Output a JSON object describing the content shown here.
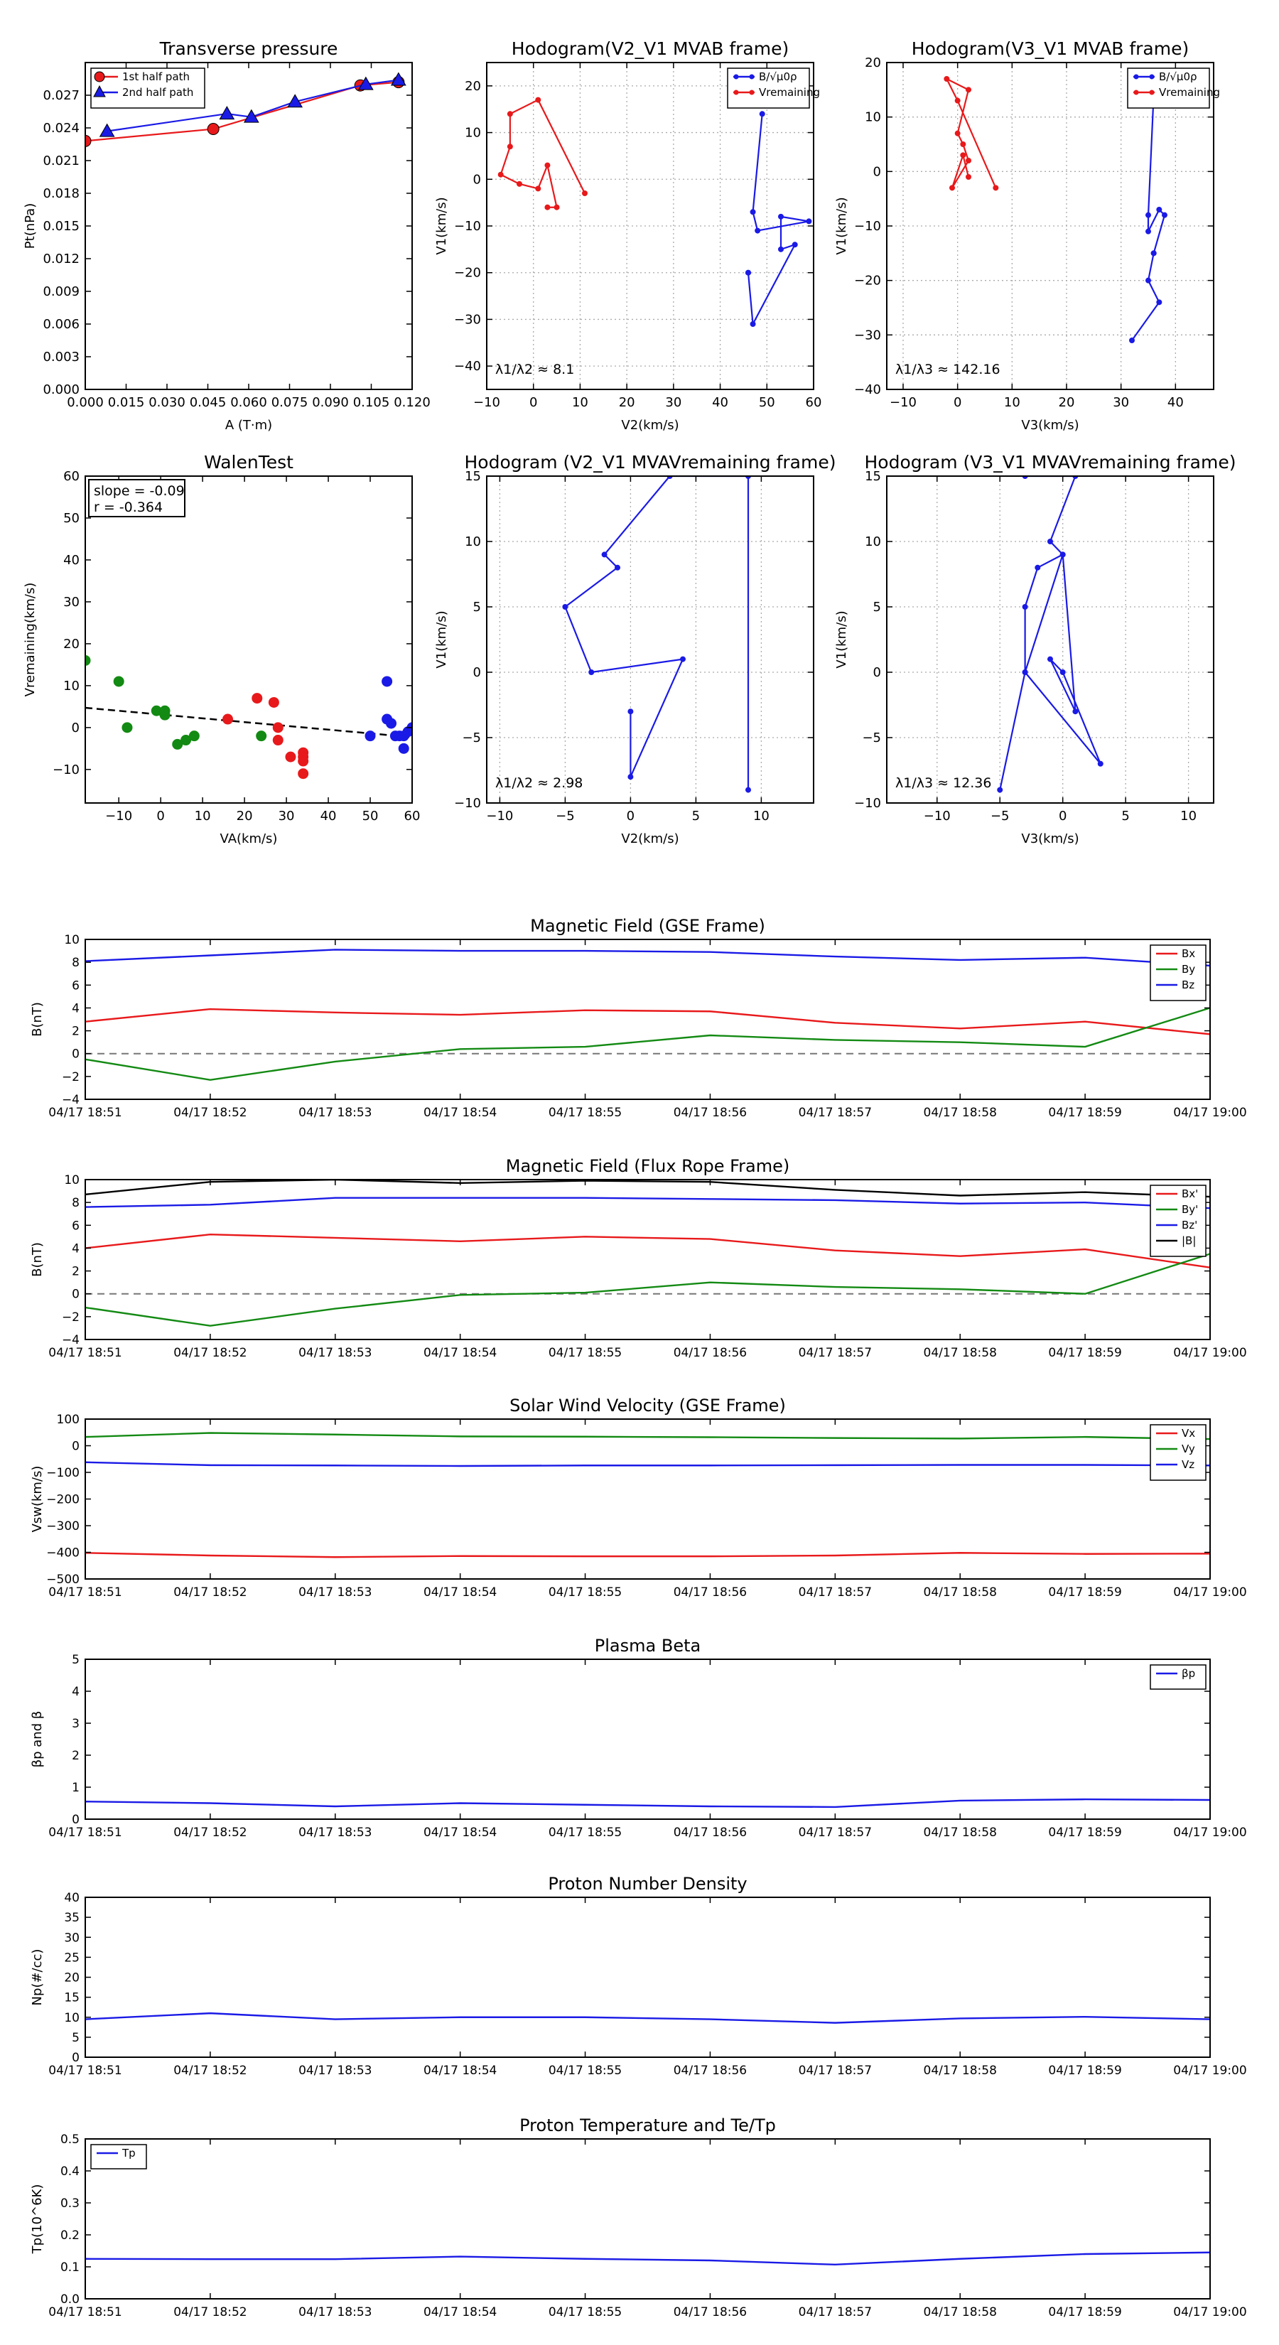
{
  "colors": {
    "red": "#e8191b",
    "green": "#138a13",
    "blue": "#1a1ae6",
    "black": "#000000",
    "grid": "#aaaaaa"
  },
  "time_axis": {
    "ticks": [
      "04/17 18:51",
      "04/17 18:52",
      "04/17 18:53",
      "04/17 18:54",
      "04/17 18:55",
      "04/17 18:56",
      "04/17 18:57",
      "04/17 18:58",
      "04/17 18:59",
      "04/17 19:00"
    ]
  },
  "chart_data": [
    {
      "id": "transverse-pressure",
      "type": "line",
      "title": "Transverse pressure",
      "xlabel": "A (T·m)",
      "ylabel": "Pt(nPa)",
      "xlim": [
        0,
        0.12
      ],
      "ylim": [
        0,
        0.03
      ],
      "grid": false,
      "xticks": [
        "0.000",
        "0.015",
        "0.030",
        "0.045",
        "0.060",
        "0.075",
        "0.090",
        "0.105",
        "0.120"
      ],
      "yticks": [
        "0.000",
        "0.003",
        "0.006",
        "0.009",
        "0.012",
        "0.015",
        "0.018",
        "0.021",
        "0.024",
        "0.027"
      ],
      "legend_position": "top-left",
      "series": [
        {
          "name": "1st half path",
          "color": "red",
          "marker": "circle",
          "x": [
            0.0,
            0.047,
            0.101,
            0.115
          ],
          "y": [
            0.0228,
            0.0239,
            0.0279,
            0.0282
          ]
        },
        {
          "name": "2nd half path",
          "color": "blue",
          "marker": "triangle",
          "x": [
            0.115,
            0.103,
            0.077,
            0.061,
            0.052,
            0.008
          ],
          "y": [
            0.0284,
            0.028,
            0.0264,
            0.025,
            0.0253,
            0.0237
          ]
        }
      ]
    },
    {
      "id": "hodogram-v2v1-mvab",
      "type": "line",
      "title": "Hodogram(V2_V1 MVAB frame)",
      "xlabel": "V2(km/s)",
      "ylabel": "V1(km/s)",
      "xlim": [
        -10,
        60
      ],
      "ylim": [
        -45,
        25
      ],
      "grid": true,
      "xticks": [
        "−10",
        "0",
        "10",
        "20",
        "30",
        "40",
        "50",
        "60"
      ],
      "yticks": [
        "20",
        "10",
        "0",
        "−10",
        "−20",
        "−30",
        "−40"
      ],
      "annotation": "λ1/λ2 ≈ 8.1",
      "legend_position": "top-right",
      "legend": [
        "B/√μ0ρ",
        "Vremaining"
      ],
      "series": [
        {
          "name": "B/√μ0ρ",
          "color": "blue",
          "x": [
            49,
            47,
            48,
            59,
            53,
            53,
            56,
            47,
            46,
            46
          ],
          "y": [
            14,
            -7,
            -11,
            -9,
            -8,
            -15,
            -14,
            -31,
            -20,
            -20
          ]
        },
        {
          "name": "Vremaining",
          "color": "red",
          "x": [
            11,
            1,
            -5,
            -5,
            -7,
            -3,
            1,
            3,
            5,
            3
          ],
          "y": [
            -3,
            17,
            14,
            7,
            1,
            -1,
            -2,
            3,
            -6,
            -6
          ]
        }
      ]
    },
    {
      "id": "hodogram-v3v1-mvab",
      "type": "line",
      "title": "Hodogram(V3_V1 MVAB frame)",
      "xlabel": "V3(km/s)",
      "ylabel": "V1(km/s)",
      "xlim": [
        -13,
        47
      ],
      "ylim": [
        -40,
        20
      ],
      "grid": true,
      "xticks": [
        "−10",
        "0",
        "10",
        "20",
        "30",
        "40"
      ],
      "yticks": [
        "20",
        "10",
        "0",
        "−10",
        "−20",
        "−30",
        "−40"
      ],
      "annotation": "λ1/λ3 ≈ 142.16",
      "legend_position": "top-right",
      "legend": [
        "B/√μ0ρ",
        "Vremaining"
      ],
      "series": [
        {
          "name": "B/√μ0ρ",
          "color": "blue",
          "x": [
            36,
            35,
            35,
            37,
            38,
            36,
            36,
            35,
            37,
            32
          ],
          "y": [
            14,
            -8,
            -11,
            -7,
            -8,
            -15,
            -15,
            -20,
            -24,
            -31
          ]
        },
        {
          "name": "Vremaining",
          "color": "red",
          "x": [
            7,
            0,
            -2,
            2,
            0,
            1,
            2,
            -1,
            1,
            2
          ],
          "y": [
            -3,
            13,
            17,
            15,
            7,
            5,
            2,
            -3,
            3,
            -1
          ]
        }
      ]
    },
    {
      "id": "walen-test",
      "type": "scatter",
      "title": "WalenTest",
      "xlabel": "VA(km/s)",
      "ylabel": "Vremaining(km/s)",
      "xlim": [
        -18,
        60
      ],
      "ylim": [
        -18,
        60
      ],
      "grid": false,
      "xticks": [
        "−10",
        "0",
        "10",
        "20",
        "30",
        "40",
        "50",
        "60"
      ],
      "yticks": [
        "60",
        "50",
        "40",
        "30",
        "20",
        "10",
        "0",
        "−10"
      ],
      "stats": [
        "slope = -0.09",
        "r = -0.364"
      ],
      "fit": {
        "slope": -0.09,
        "intercept": 3.1,
        "style": "dashed"
      },
      "series": [
        {
          "name": "green",
          "color": "green",
          "x": [
            -18,
            -10,
            -8,
            -1,
            1,
            1,
            4,
            6,
            8,
            24
          ],
          "y": [
            16,
            11,
            0,
            4,
            3,
            4,
            -4,
            -3,
            -2,
            -2
          ]
        },
        {
          "name": "red",
          "color": "red",
          "x": [
            16,
            23,
            27,
            28,
            28,
            31,
            34,
            34,
            34,
            34
          ],
          "y": [
            2,
            7,
            6,
            0,
            -3,
            -7,
            -6,
            -7,
            -8,
            -11
          ]
        },
        {
          "name": "blue",
          "color": "blue",
          "x": [
            50,
            54,
            54,
            55,
            56,
            57,
            58,
            58,
            59,
            60
          ],
          "y": [
            -2,
            11,
            2,
            1,
            -2,
            -2,
            -5,
            -2,
            -1,
            0
          ]
        }
      ]
    },
    {
      "id": "hodogram-v2v1-mvav",
      "type": "line",
      "title": "Hodogram (V2_V1 MVAVremaining frame)",
      "xlabel": "V2(km/s)",
      "ylabel": "V1(km/s)",
      "xlim": [
        -11,
        14
      ],
      "ylim": [
        -10,
        15
      ],
      "grid": true,
      "xticks": [
        "−10",
        "−5",
        "0",
        "5",
        "10"
      ],
      "yticks": [
        "15",
        "10",
        "5",
        "0",
        "−5",
        "−10"
      ],
      "annotation": "λ1/λ2 ≈ 2.98",
      "series": [
        {
          "name": "velocity",
          "color": "blue",
          "x": [
            9,
            9,
            3,
            -2,
            -1,
            -5,
            -3,
            4,
            0,
            0
          ],
          "y": [
            -9,
            15,
            15,
            9,
            8,
            5,
            0,
            1,
            -8,
            -3
          ]
        }
      ]
    },
    {
      "id": "hodogram-v3v1-mvav",
      "type": "line",
      "title": "Hodogram (V3_V1 MVAVremaining frame)",
      "xlabel": "V3(km/s)",
      "ylabel": "V1(km/s)",
      "xlim": [
        -14,
        12
      ],
      "ylim": [
        -10,
        15
      ],
      "grid": true,
      "xticks": [
        "−10",
        "−5",
        "0",
        "5",
        "10"
      ],
      "yticks": [
        "15",
        "10",
        "5",
        "0",
        "−5",
        "−10"
      ],
      "annotation": "λ1/λ3 ≈ 12.36",
      "series": [
        {
          "name": "velocity",
          "color": "blue",
          "x": [
            -5,
            -3,
            3,
            0,
            -1,
            1,
            0,
            -2,
            -3,
            -3,
            0,
            -1,
            1,
            -3
          ],
          "y": [
            -9,
            0,
            -7,
            0,
            1,
            -3,
            9,
            8,
            5,
            0,
            9,
            10,
            15,
            15
          ]
        }
      ]
    },
    {
      "id": "mag-field-gse",
      "type": "line",
      "title": "Magnetic Field (GSE Frame)",
      "ylabel": "B(nT)",
      "ylim": [
        -4,
        10
      ],
      "grid": false,
      "zero_line": true,
      "yticks": [
        "10",
        "8",
        "6",
        "4",
        "2",
        "0",
        "−2",
        "−4"
      ],
      "legend_position": "top-right",
      "x": [
        0,
        1,
        2,
        3,
        4,
        5,
        6,
        7,
        8,
        9
      ],
      "series": [
        {
          "name": "Bx",
          "color": "red",
          "values": [
            2.8,
            3.9,
            3.6,
            3.4,
            3.8,
            3.7,
            2.7,
            2.2,
            2.8,
            1.7
          ]
        },
        {
          "name": "By",
          "color": "green",
          "values": [
            -0.5,
            -2.3,
            -0.7,
            0.4,
            0.6,
            1.6,
            1.2,
            1.0,
            0.6,
            4.0
          ]
        },
        {
          "name": "Bz",
          "color": "blue",
          "values": [
            8.1,
            8.6,
            9.1,
            9.0,
            9.0,
            8.9,
            8.5,
            8.2,
            8.4,
            7.7
          ]
        }
      ]
    },
    {
      "id": "mag-field-flux-rope",
      "type": "line",
      "title": "Magnetic Field (Flux Rope Frame)",
      "ylabel": "B(nT)",
      "ylim": [
        -4,
        10
      ],
      "grid": false,
      "zero_line": true,
      "yticks": [
        "10",
        "8",
        "6",
        "4",
        "2",
        "0",
        "−2",
        "−4"
      ],
      "legend_position": "top-right",
      "x": [
        0,
        1,
        2,
        3,
        4,
        5,
        6,
        7,
        8,
        9
      ],
      "series": [
        {
          "name": "Bx'",
          "color": "red",
          "values": [
            4.0,
            5.2,
            4.9,
            4.6,
            5.0,
            4.8,
            3.8,
            3.3,
            3.9,
            2.3
          ]
        },
        {
          "name": "By'",
          "color": "green",
          "values": [
            -1.2,
            -2.8,
            -1.3,
            -0.1,
            0.1,
            1.0,
            0.6,
            0.4,
            0.0,
            3.5
          ]
        },
        {
          "name": "Bz'",
          "color": "blue",
          "values": [
            7.6,
            7.8,
            8.4,
            8.4,
            8.4,
            8.3,
            8.2,
            7.9,
            8.0,
            7.5
          ]
        },
        {
          "name": "|B|",
          "color": "black",
          "values": [
            8.7,
            9.8,
            10.0,
            9.7,
            9.9,
            9.8,
            9.1,
            8.6,
            8.9,
            8.5
          ]
        }
      ]
    },
    {
      "id": "solar-wind-velocity",
      "type": "line",
      "title": "Solar Wind Velocity (GSE Frame)",
      "ylabel": "Vsw(km/s)",
      "ylim": [
        -500,
        100
      ],
      "grid": false,
      "yticks": [
        "100",
        "0",
        "−100",
        "−200",
        "−300",
        "−400",
        "−500"
      ],
      "legend_position": "top-right",
      "x": [
        0,
        1,
        2,
        3,
        4,
        5,
        6,
        7,
        8,
        9
      ],
      "series": [
        {
          "name": "Vx",
          "color": "red",
          "values": [
            -402,
            -412,
            -418,
            -414,
            -415,
            -415,
            -412,
            -402,
            -406,
            -405
          ]
        },
        {
          "name": "Vy",
          "color": "green",
          "values": [
            33,
            48,
            42,
            35,
            34,
            32,
            29,
            27,
            33,
            25
          ]
        },
        {
          "name": "Vz",
          "color": "blue",
          "values": [
            -62,
            -73,
            -74,
            -76,
            -74,
            -74,
            -73,
            -72,
            -72,
            -74
          ]
        }
      ]
    },
    {
      "id": "plasma-beta",
      "type": "line",
      "title": "Plasma Beta",
      "ylabel": "βp and β",
      "ylim": [
        0,
        5
      ],
      "grid": false,
      "yticks": [
        "5",
        "4",
        "3",
        "2",
        "1",
        "0"
      ],
      "legend_position": "top-right",
      "x": [
        0,
        1,
        2,
        3,
        4,
        5,
        6,
        7,
        8,
        9
      ],
      "series": [
        {
          "name": "βp",
          "color": "blue",
          "values": [
            0.55,
            0.5,
            0.4,
            0.5,
            0.45,
            0.4,
            0.38,
            0.58,
            0.62,
            0.6
          ]
        }
      ]
    },
    {
      "id": "proton-density",
      "type": "line",
      "title": "Proton Number Density",
      "ylabel": "Np(#/cc)",
      "ylim": [
        0,
        40
      ],
      "grid": false,
      "yticks": [
        "40",
        "35",
        "30",
        "25",
        "20",
        "15",
        "10",
        "5",
        "0"
      ],
      "x": [
        0,
        1,
        2,
        3,
        4,
        5,
        6,
        7,
        8,
        9
      ],
      "series": [
        {
          "name": "Np",
          "color": "blue",
          "values": [
            9.5,
            11.0,
            9.5,
            10.0,
            10.0,
            9.5,
            8.6,
            9.7,
            10.1,
            9.5
          ]
        }
      ]
    },
    {
      "id": "proton-temperature",
      "type": "line",
      "title": "Proton Temperature and Te/Tp",
      "ylabel": "Tp(10^6K)",
      "ylim": [
        0,
        0.5
      ],
      "grid": false,
      "yticks": [
        "0.5",
        "0.4",
        "0.3",
        "0.2",
        "0.1",
        "0.0"
      ],
      "legend_position": "top-left",
      "x": [
        0,
        1,
        2,
        3,
        4,
        5,
        6,
        7,
        8,
        9
      ],
      "series": [
        {
          "name": "Tp",
          "color": "blue",
          "values": [
            0.125,
            0.124,
            0.124,
            0.132,
            0.125,
            0.12,
            0.107,
            0.125,
            0.14,
            0.145
          ]
        }
      ]
    }
  ]
}
